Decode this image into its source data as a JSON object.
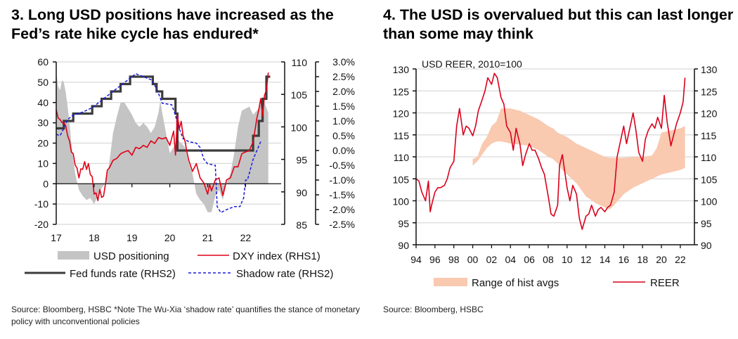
{
  "chart_data": [
    {
      "type": "line",
      "title": "3.  Long USD positions have increased as the Fed’s rate hike cycle has endured*",
      "source": "Source: Bloomberg, HSBC *Note The Wu-Xia ‘shadow rate’ quantifies the stance of monetary policy with unconventional policies",
      "x_tick_labels": [
        "17",
        "18",
        "19",
        "20",
        "21",
        "22"
      ],
      "x_range": [
        2017.0,
        2022.9
      ],
      "y_left": {
        "ticks": [
          "60",
          "50",
          "40",
          "30",
          "20",
          "10",
          "0",
          "-10",
          "-20"
        ],
        "range": [
          -20,
          60
        ]
      },
      "y_right1": {
        "ticks": [
          "110",
          "105",
          "100",
          "95",
          "90",
          "85"
        ],
        "range": [
          85,
          110
        ]
      },
      "y_right2": {
        "ticks": [
          "3.0%",
          "2.5%",
          "2.0%",
          "1.5%",
          "1.0%",
          "0.5%",
          "0.0%",
          "-0.5%",
          "-1.0%",
          "-1.5%",
          "-2.0%",
          "-2.5%"
        ],
        "range": [
          -2.5,
          3.0
        ]
      },
      "grid": true,
      "legend": [
        {
          "label": "USD positioning",
          "kind": "area"
        },
        {
          "label": "DXY index (RHS1)",
          "kind": "line"
        },
        {
          "label": "Fed funds rate (RHS2)",
          "kind": "line"
        },
        {
          "label": "Shadow rate (RHS2)",
          "kind": "dashed"
        }
      ],
      "legend_placement": "bottom",
      "colors": {
        "positioning": "#c4c4c4",
        "dxy": "#e00016",
        "fed": "#3c3c3c",
        "shadow": "#1a1adb"
      },
      "series": [
        {
          "name": "USD positioning",
          "axis": "left",
          "x": [
            2017.0,
            2017.05,
            2017.1,
            2017.15,
            2017.2,
            2017.25,
            2017.3,
            2017.35,
            2017.4,
            2017.5,
            2017.6,
            2017.7,
            2017.8,
            2017.9,
            2018.0,
            2018.1,
            2018.2,
            2018.3,
            2018.4,
            2018.5,
            2018.6,
            2018.7,
            2018.8,
            2018.9,
            2019.0,
            2019.1,
            2019.2,
            2019.3,
            2019.4,
            2019.5,
            2019.6,
            2019.7,
            2019.75,
            2019.8,
            2019.9,
            2020.0,
            2020.1,
            2020.2,
            2020.3,
            2020.4,
            2020.5,
            2020.6,
            2020.7,
            2020.8,
            2020.9,
            2021.0,
            2021.1,
            2021.2,
            2021.3,
            2021.4,
            2021.5,
            2021.6,
            2021.7,
            2021.8,
            2021.9,
            2022.0,
            2022.1,
            2022.2,
            2022.3,
            2022.4,
            2022.5,
            2022.6
          ],
          "values": [
            55,
            48,
            46,
            51,
            50,
            45,
            38,
            30,
            20,
            5,
            -3,
            -6,
            -8,
            -7,
            -10,
            -6,
            -2,
            0,
            10,
            25,
            33,
            40,
            40,
            37,
            34,
            30,
            28,
            30,
            28,
            25,
            28,
            35,
            41,
            35,
            25,
            15,
            18,
            22,
            20,
            18,
            10,
            5,
            -5,
            -8,
            -10,
            -14,
            -14,
            -6,
            -3,
            -8,
            0,
            5,
            15,
            28,
            36,
            37,
            38,
            34,
            36,
            39,
            40,
            35
          ]
        },
        {
          "name": "DXY index (RHS1)",
          "axis": "right1",
          "x": [
            2017.0,
            2017.05,
            2017.1,
            2017.15,
            2017.2,
            2017.25,
            2017.3,
            2017.35,
            2017.4,
            2017.45,
            2017.5,
            2017.55,
            2017.6,
            2017.65,
            2017.7,
            2017.75,
            2017.8,
            2017.85,
            2017.9,
            2017.95,
            2018.0,
            2018.05,
            2018.1,
            2018.15,
            2018.2,
            2018.25,
            2018.3,
            2018.35,
            2018.4,
            2018.5,
            2018.6,
            2018.7,
            2018.8,
            2018.9,
            2019.0,
            2019.1,
            2019.2,
            2019.3,
            2019.4,
            2019.5,
            2019.6,
            2019.7,
            2019.8,
            2019.9,
            2020.0,
            2020.1,
            2020.15,
            2020.2,
            2020.25,
            2020.3,
            2020.35,
            2020.4,
            2020.45,
            2020.5,
            2020.6,
            2020.7,
            2020.8,
            2020.9,
            2021.0,
            2021.05,
            2021.1,
            2021.2,
            2021.3,
            2021.35,
            2021.4,
            2021.5,
            2021.6,
            2021.7,
            2021.8,
            2021.9,
            2022.0,
            2022.1,
            2022.2,
            2022.3,
            2022.35,
            2022.4,
            2022.45,
            2022.5,
            2022.55,
            2022.6
          ],
          "values": [
            103.0,
            101.0,
            101.5,
            100.3,
            101.0,
            99.8,
            99.0,
            97.5,
            96.5,
            95.5,
            94.5,
            93.3,
            92.5,
            93.2,
            93.8,
            94.3,
            93.8,
            94.0,
            93.0,
            92.0,
            90.0,
            89.5,
            89.0,
            90.0,
            89.5,
            89.0,
            91.5,
            93.0,
            94.0,
            94.5,
            95.5,
            95.5,
            96.5,
            96.0,
            96.0,
            96.5,
            97.0,
            96.8,
            97.2,
            97.5,
            97.8,
            98.0,
            98.5,
            98.0,
            97.5,
            99.0,
            96.0,
            101.5,
            100.0,
            100.5,
            99.0,
            97.5,
            96.5,
            94.5,
            93.5,
            94.0,
            92.5,
            91.0,
            90.0,
            90.8,
            90.5,
            91.5,
            92.5,
            90.5,
            89.8,
            91.5,
            92.5,
            93.5,
            94.2,
            95.5,
            96.5,
            96.0,
            98.0,
            101.0,
            103.0,
            104.0,
            102.0,
            104.5,
            106.0,
            108.0
          ]
        },
        {
          "name": "Fed funds rate (RHS2)",
          "axis": "right2",
          "step": true,
          "x": [
            2017.0,
            2017.2,
            2017.45,
            2017.95,
            2018.2,
            2018.45,
            2018.7,
            2018.95,
            2019.55,
            2019.65,
            2019.8,
            2020.15,
            2020.2,
            2022.2,
            2022.35,
            2022.45,
            2022.55,
            2022.65
          ],
          "values": [
            0.75,
            1.0,
            1.25,
            1.5,
            1.75,
            2.0,
            2.25,
            2.5,
            2.25,
            2.0,
            1.75,
            1.25,
            0.0,
            0.5,
            1.0,
            1.75,
            2.5,
            2.5
          ]
        },
        {
          "name": "Shadow rate (RHS2)",
          "axis": "right2",
          "x": [
            2017.0,
            2017.1,
            2017.2,
            2017.3,
            2017.45,
            2017.7,
            2017.95,
            2018.2,
            2018.45,
            2018.7,
            2018.95,
            2019.1,
            2019.3,
            2019.5,
            2019.65,
            2019.8,
            2020.05,
            2020.15,
            2020.2,
            2020.35,
            2020.5,
            2020.7,
            2020.8,
            2020.9,
            2021.0,
            2021.2,
            2021.25,
            2021.35,
            2021.5,
            2021.7,
            2021.85,
            2021.95,
            2022.0,
            2022.05,
            2022.2,
            2022.3,
            2022.4
          ],
          "values": [
            0.55,
            0.5,
            0.75,
            1.05,
            1.2,
            1.3,
            1.45,
            1.7,
            1.95,
            2.2,
            2.45,
            2.6,
            2.5,
            2.4,
            2.1,
            1.6,
            1.55,
            1.2,
            0.9,
            0.4,
            0.3,
            0.25,
            0.1,
            -0.3,
            -0.45,
            -0.5,
            -1.9,
            -2.1,
            -2.0,
            -1.9,
            -1.9,
            -1.6,
            -1.0,
            -1.0,
            -0.3,
            0.0,
            0.3
          ]
        }
      ]
    },
    {
      "type": "line",
      "title": "4. The USD is overvalued but this can last longer than some may think",
      "subtitle": "USD REER, 2010=100",
      "source": "Source: Bloomberg, HSBC",
      "x_tick_labels": [
        "94",
        "96",
        "98",
        "00",
        "02",
        "04",
        "06",
        "08",
        "10",
        "12",
        "14",
        "16",
        "18",
        "20",
        "22"
      ],
      "x_range": [
        1994,
        2022.9
      ],
      "y_left": {
        "ticks": [
          "130",
          "125",
          "120",
          "115",
          "110",
          "105",
          "100",
          "95",
          "90"
        ],
        "range": [
          90,
          130
        ]
      },
      "y_right": {
        "ticks": [
          "130",
          "125",
          "120",
          "115",
          "110",
          "105",
          "100",
          "95",
          "90"
        ],
        "range": [
          90,
          130
        ]
      },
      "grid": true,
      "legend": [
        {
          "label": "Range of hist avgs",
          "kind": "band"
        },
        {
          "label": "REER",
          "kind": "line"
        }
      ],
      "legend_placement": "bottom",
      "colors": {
        "band": "#f9c9b0",
        "reer": "#d9001b"
      },
      "series": [
        {
          "name": "Range of hist avgs",
          "x": [
            2000.0,
            2000.5,
            2001.0,
            2001.5,
            2002.0,
            2002.5,
            2003.0,
            2003.5,
            2004.0,
            2005.0,
            2006.0,
            2007.0,
            2008.0,
            2008.5,
            2009.0,
            2009.5,
            2010.0,
            2011.0,
            2012.0,
            2013.0,
            2014.0,
            2014.5,
            2015.0,
            2016.0,
            2017.0,
            2018.0,
            2019.0,
            2019.5,
            2020.0,
            2021.0,
            2022.0,
            2022.5
          ],
          "low": [
            108.0,
            109.0,
            110.5,
            112.0,
            113.0,
            113.5,
            113.5,
            113.3,
            113.0,
            112.8,
            112.5,
            111.5,
            110.0,
            109.5,
            108.5,
            107.0,
            106.0,
            104.0,
            101.0,
            99.5,
            98.5,
            98.0,
            99.0,
            101.5,
            103.0,
            104.0,
            105.0,
            105.5,
            106.0,
            106.5,
            107.0,
            107.5
          ],
          "high": [
            109.5,
            110.0,
            113.0,
            114.5,
            117.0,
            118.0,
            121.0,
            121.0,
            121.0,
            120.5,
            119.5,
            118.5,
            117.0,
            116.5,
            115.5,
            115.0,
            114.5,
            113.0,
            112.0,
            111.0,
            110.0,
            109.8,
            109.8,
            109.8,
            110.0,
            110.0,
            110.3,
            112.0,
            115.5,
            116.0,
            116.5,
            117.0
          ]
        },
        {
          "name": "REER",
          "x": [
            1994.0,
            1994.3,
            1994.6,
            1995.0,
            1995.3,
            1995.5,
            1995.7,
            1996.0,
            1996.3,
            1996.6,
            1997.0,
            1997.3,
            1997.6,
            1998.0,
            1998.3,
            1998.6,
            1999.0,
            1999.3,
            1999.6,
            2000.0,
            2000.3,
            2000.6,
            2001.0,
            2001.3,
            2001.6,
            2002.0,
            2002.3,
            2002.6,
            2003.0,
            2003.3,
            2003.6,
            2004.0,
            2004.3,
            2004.6,
            2005.0,
            2005.3,
            2005.6,
            2006.0,
            2006.3,
            2006.6,
            2007.0,
            2007.3,
            2007.6,
            2008.0,
            2008.3,
            2008.6,
            2009.0,
            2009.2,
            2009.5,
            2009.8,
            2010.0,
            2010.3,
            2010.6,
            2011.0,
            2011.3,
            2011.6,
            2012.0,
            2012.3,
            2012.6,
            2013.0,
            2013.3,
            2013.6,
            2014.0,
            2014.3,
            2014.6,
            2015.0,
            2015.3,
            2015.6,
            2016.0,
            2016.3,
            2016.6,
            2017.0,
            2017.3,
            2017.6,
            2018.0,
            2018.3,
            2018.6,
            2019.0,
            2019.3,
            2019.6,
            2020.0,
            2020.3,
            2020.6,
            2021.0,
            2021.3,
            2021.6,
            2022.0,
            2022.3,
            2022.5
          ],
          "values": [
            105.0,
            104.5,
            102.0,
            100.0,
            104.5,
            97.5,
            99.5,
            102.0,
            103.0,
            103.0,
            103.5,
            105.0,
            107.5,
            109.0,
            117.0,
            121.0,
            115.0,
            117.0,
            116.5,
            114.8,
            117.0,
            120.5,
            123.0,
            125.0,
            128.0,
            126.5,
            129.0,
            128.0,
            123.5,
            122.0,
            117.0,
            115.5,
            111.5,
            116.5,
            113.0,
            108.0,
            110.5,
            113.0,
            111.5,
            111.5,
            109.5,
            107.5,
            106.0,
            101.0,
            97.0,
            96.5,
            99.0,
            108.0,
            110.5,
            106.0,
            103.0,
            100.0,
            103.5,
            101.5,
            96.0,
            93.5,
            96.5,
            97.0,
            99.0,
            96.5,
            98.0,
            98.5,
            97.5,
            98.5,
            99.0,
            102.0,
            110.0,
            113.0,
            117.0,
            113.0,
            116.0,
            120.0,
            116.0,
            111.0,
            109.0,
            114.0,
            116.0,
            117.5,
            116.5,
            119.0,
            116.5,
            124.0,
            118.0,
            112.5,
            115.0,
            117.5,
            120.0,
            122.5,
            128.0
          ]
        }
      ]
    }
  ],
  "chart3": {
    "title": "3.  Long USD positions have increased as the Fed’s rate hike cycle has endured*",
    "legend": [
      "USD positioning",
      "DXY index (RHS1)",
      "Fed funds rate (RHS2)",
      "Shadow rate (RHS2)"
    ],
    "source": "Source: Bloomberg, HSBC *Note The Wu-Xia ‘shadow rate’ quantifies the stance of monetary policy with unconventional policies"
  },
  "chart4": {
    "title": "4. The USD is overvalued but this can last longer than some may think",
    "subtitle": "USD REER, 2010=100",
    "legend": [
      "Range of hist avgs",
      "REER"
    ],
    "source": "Source: Bloomberg, HSBC"
  }
}
